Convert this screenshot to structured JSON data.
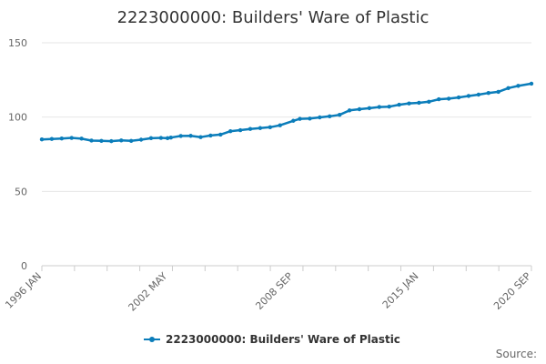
{
  "chart_data": {
    "type": "line",
    "title": "2223000000: Builders' Ware of Plastic",
    "xlabel": "",
    "ylabel": "",
    "ylim": [
      0,
      150
    ],
    "y_ticks": [
      "0",
      "50",
      "100",
      "150"
    ],
    "x_tick_labels": [
      "1996 JAN",
      "2002 MAY",
      "2008 SEP",
      "2015 JAN",
      "2020 SEP"
    ],
    "grid": "horizontal",
    "legend_position": "bottom",
    "series": [
      {
        "name": "2223000000: Builders' Ware of Plastic",
        "color": "#0b7dba",
        "points": [
          [
            "1996-01",
            85.0
          ],
          [
            "1996-07",
            85.3
          ],
          [
            "1997-01",
            85.6
          ],
          [
            "1997-07",
            86.0
          ],
          [
            "1998-01",
            85.5
          ],
          [
            "1998-07",
            84.2
          ],
          [
            "1999-01",
            84.0
          ],
          [
            "1999-07",
            83.8
          ],
          [
            "2000-01",
            84.3
          ],
          [
            "2000-07",
            84.0
          ],
          [
            "2001-01",
            84.8
          ],
          [
            "2001-07",
            85.8
          ],
          [
            "2002-01",
            86.0
          ],
          [
            "2002-05",
            85.8
          ],
          [
            "2002-07",
            86.2
          ],
          [
            "2003-01",
            87.3
          ],
          [
            "2003-07",
            87.4
          ],
          [
            "2004-01",
            86.5
          ],
          [
            "2004-07",
            87.6
          ],
          [
            "2005-01",
            88.2
          ],
          [
            "2005-07",
            90.5
          ],
          [
            "2006-01",
            91.2
          ],
          [
            "2006-07",
            92.0
          ],
          [
            "2007-01",
            92.6
          ],
          [
            "2007-07",
            93.2
          ],
          [
            "2008-01",
            94.5
          ],
          [
            "2008-09",
            97.5
          ],
          [
            "2009-01",
            98.8
          ],
          [
            "2009-07",
            99.0
          ],
          [
            "2010-01",
            99.8
          ],
          [
            "2010-07",
            100.5
          ],
          [
            "2011-01",
            101.5
          ],
          [
            "2011-07",
            104.5
          ],
          [
            "2012-01",
            105.3
          ],
          [
            "2012-07",
            106.0
          ],
          [
            "2013-01",
            106.8
          ],
          [
            "2013-07",
            107.0
          ],
          [
            "2014-01",
            108.3
          ],
          [
            "2014-07",
            109.2
          ],
          [
            "2015-01",
            109.6
          ],
          [
            "2015-07",
            110.3
          ],
          [
            "2016-01",
            112.0
          ],
          [
            "2016-07",
            112.4
          ],
          [
            "2017-01",
            113.2
          ],
          [
            "2017-07",
            114.2
          ],
          [
            "2018-01",
            115.1
          ],
          [
            "2018-07",
            116.2
          ],
          [
            "2019-01",
            117.0
          ],
          [
            "2019-07",
            119.5
          ],
          [
            "2020-01",
            121.0
          ],
          [
            "2020-09",
            122.5
          ]
        ]
      }
    ]
  },
  "source_label": "Source:"
}
